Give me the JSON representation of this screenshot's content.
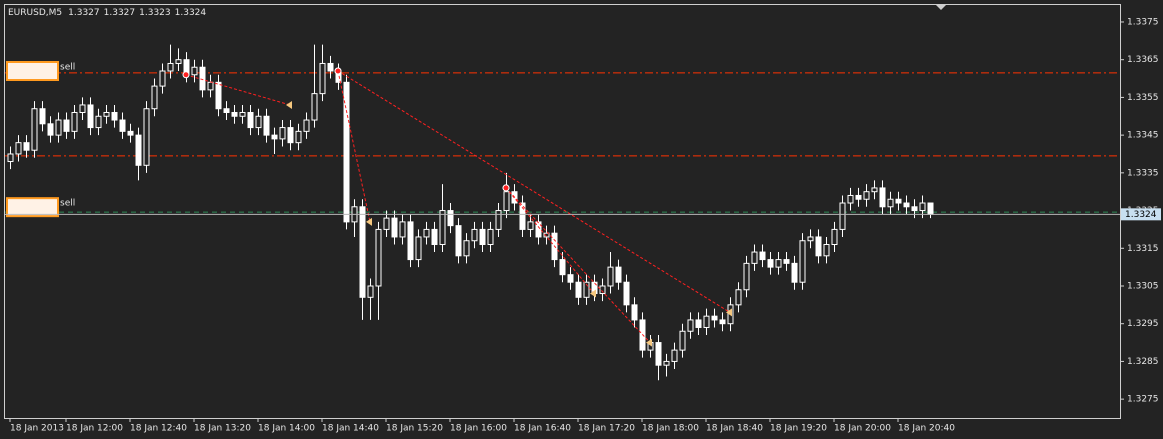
{
  "chart_data": {
    "type": "candlestick",
    "symbol": "EURUSD,M5",
    "current_price": 1.3324,
    "xlim": [
      -0.625,
      138.75
    ],
    "ylim": [
      1.327,
      1.33795
    ],
    "yticks": [
      1.3375,
      1.3365,
      1.3355,
      1.3345,
      1.3335,
      1.3325,
      1.3315,
      1.3305,
      1.3295,
      1.3285,
      1.3275
    ],
    "xticks": [
      {
        "value": 0,
        "label": "18 Jan 2013"
      },
      {
        "value": 7,
        "label": "18 Jan 12:00"
      },
      {
        "value": 15,
        "label": "18 Jan 12:40"
      },
      {
        "value": 23,
        "label": "18 Jan 13:20"
      },
      {
        "value": 31,
        "label": "18 Jan 14:00"
      },
      {
        "value": 39,
        "label": "18 Jan 14:40"
      },
      {
        "value": 47,
        "label": "18 Jan 15:20"
      },
      {
        "value": 55,
        "label": "18 Jan 16:00"
      },
      {
        "value": 63,
        "label": "18 Jan 16:40"
      },
      {
        "value": 71,
        "label": "18 Jan 17:20"
      },
      {
        "value": 79,
        "label": "18 Jan 18:00"
      },
      {
        "value": 87,
        "label": "18 Jan 18:40"
      },
      {
        "value": 95,
        "label": "18 Jan 19:20"
      },
      {
        "value": 103,
        "label": "18 Jan 20:00"
      },
      {
        "value": 111,
        "label": "18 Jan 20:40"
      }
    ],
    "bull_color": "#ffffff",
    "bear_color": "#ffffff",
    "levels": [
      {
        "price": 1.33615,
        "color": "#ff3300",
        "style": "dashdot"
      },
      {
        "price": 1.33395,
        "color": "#ff3300",
        "style": "dashdot"
      },
      {
        "price": 1.33246,
        "color": "#2e8b57",
        "style": "dashed"
      }
    ],
    "orders": [
      {
        "label": "sell",
        "price": 1.3362
      },
      {
        "label": "sell",
        "price": 1.33259
      }
    ],
    "trades": [
      {
        "open_index": 22,
        "open_price": 1.3361,
        "close_index": 35,
        "close_price": 1.3353
      },
      {
        "open_index": 41,
        "open_price": 1.3362,
        "close_index": 45,
        "close_price": 1.3322
      },
      {
        "open_index": 41,
        "open_price": 1.3362,
        "close_index": 90,
        "close_price": 1.3298
      },
      {
        "open_index": 62,
        "open_price": 1.3331,
        "close_index": 73,
        "close_price": 1.3303
      },
      {
        "open_index": 62,
        "open_price": 1.3331,
        "close_index": 80,
        "close_price": 1.329
      }
    ],
    "candles": [
      [
        1.3338,
        1.3342,
        1.3336,
        1.334
      ],
      [
        1.334,
        1.3345,
        1.3338,
        1.3343
      ],
      [
        1.3343,
        1.3345,
        1.3339,
        1.3341
      ],
      [
        1.3341,
        1.3354,
        1.3339,
        1.3352
      ],
      [
        1.3352,
        1.3354,
        1.3346,
        1.3348
      ],
      [
        1.3348,
        1.335,
        1.3343,
        1.3345
      ],
      [
        1.3345,
        1.3351,
        1.3343,
        1.3349
      ],
      [
        1.3349,
        1.3351,
        1.3344,
        1.3346
      ],
      [
        1.3346,
        1.3353,
        1.3344,
        1.3351
      ],
      [
        1.3351,
        1.3355,
        1.3349,
        1.3353
      ],
      [
        1.3353,
        1.3355,
        1.3345,
        1.3347
      ],
      [
        1.3347,
        1.3352,
        1.3345,
        1.335
      ],
      [
        1.335,
        1.3353,
        1.3348,
        1.3351
      ],
      [
        1.3351,
        1.3353,
        1.3347,
        1.3349
      ],
      [
        1.3349,
        1.3351,
        1.3344,
        1.3346
      ],
      [
        1.3346,
        1.3348,
        1.3343,
        1.3345
      ],
      [
        1.3345,
        1.3347,
        1.3333,
        1.3337
      ],
      [
        1.3337,
        1.3354,
        1.3335,
        1.3352
      ],
      [
        1.3352,
        1.336,
        1.335,
        1.3358
      ],
      [
        1.3358,
        1.3364,
        1.3356,
        1.3362
      ],
      [
        1.3362,
        1.3369,
        1.336,
        1.3364
      ],
      [
        1.3364,
        1.3368,
        1.3362,
        1.3365
      ],
      [
        1.3365,
        1.3367,
        1.3359,
        1.3361
      ],
      [
        1.3361,
        1.3365,
        1.3359,
        1.3363
      ],
      [
        1.3363,
        1.3365,
        1.3355,
        1.3357
      ],
      [
        1.3357,
        1.3361,
        1.3355,
        1.3359
      ],
      [
        1.3359,
        1.3361,
        1.335,
        1.3352
      ],
      [
        1.3352,
        1.3354,
        1.3349,
        1.3351
      ],
      [
        1.3351,
        1.3353,
        1.3348,
        1.335
      ],
      [
        1.335,
        1.3353,
        1.3348,
        1.3351
      ],
      [
        1.3351,
        1.3353,
        1.3345,
        1.3347
      ],
      [
        1.3347,
        1.3352,
        1.3345,
        1.335
      ],
      [
        1.335,
        1.3352,
        1.3343,
        1.3345
      ],
      [
        1.3345,
        1.3347,
        1.334,
        1.3344
      ],
      [
        1.3344,
        1.3349,
        1.3342,
        1.3347
      ],
      [
        1.3347,
        1.3349,
        1.3341,
        1.3343
      ],
      [
        1.3343,
        1.3348,
        1.3341,
        1.3346
      ],
      [
        1.3346,
        1.3351,
        1.3344,
        1.3349
      ],
      [
        1.3349,
        1.3369,
        1.3347,
        1.3356
      ],
      [
        1.3356,
        1.3369,
        1.3354,
        1.3364
      ],
      [
        1.3364,
        1.3366,
        1.336,
        1.3362
      ],
      [
        1.3362,
        1.3364,
        1.3357,
        1.3359
      ],
      [
        1.3359,
        1.3361,
        1.332,
        1.3322
      ],
      [
        1.3322,
        1.3328,
        1.3318,
        1.3326
      ],
      [
        1.3326,
        1.3328,
        1.3296,
        1.3302
      ],
      [
        1.3302,
        1.3307,
        1.3296,
        1.3305
      ],
      [
        1.3305,
        1.3322,
        1.3296,
        1.332
      ],
      [
        1.332,
        1.3325,
        1.3318,
        1.3323
      ],
      [
        1.3323,
        1.3325,
        1.3316,
        1.3318
      ],
      [
        1.3318,
        1.3324,
        1.3316,
        1.3322
      ],
      [
        1.3322,
        1.3324,
        1.331,
        1.3312
      ],
      [
        1.3312,
        1.332,
        1.331,
        1.3318
      ],
      [
        1.3318,
        1.3322,
        1.3316,
        1.332
      ],
      [
        1.332,
        1.3322,
        1.3314,
        1.3316
      ],
      [
        1.3316,
        1.3332,
        1.3314,
        1.3325
      ],
      [
        1.3325,
        1.3327,
        1.3319,
        1.3321
      ],
      [
        1.3321,
        1.3323,
        1.3311,
        1.3313
      ],
      [
        1.3313,
        1.3319,
        1.3311,
        1.3317
      ],
      [
        1.3317,
        1.3322,
        1.3315,
        1.332
      ],
      [
        1.332,
        1.3322,
        1.3314,
        1.3316
      ],
      [
        1.3316,
        1.3322,
        1.3314,
        1.332
      ],
      [
        1.332,
        1.3327,
        1.3318,
        1.3325
      ],
      [
        1.3325,
        1.3335,
        1.3323,
        1.333
      ],
      [
        1.333,
        1.3332,
        1.3325,
        1.3327
      ],
      [
        1.3327,
        1.3329,
        1.3318,
        1.332
      ],
      [
        1.332,
        1.3324,
        1.3318,
        1.3322
      ],
      [
        1.3322,
        1.3324,
        1.3316,
        1.3318
      ],
      [
        1.3318,
        1.3321,
        1.3316,
        1.3319
      ],
      [
        1.3319,
        1.3321,
        1.331,
        1.3312
      ],
      [
        1.3312,
        1.3314,
        1.3306,
        1.3308
      ],
      [
        1.3308,
        1.331,
        1.3304,
        1.3306
      ],
      [
        1.3306,
        1.3308,
        1.33,
        1.3302
      ],
      [
        1.3302,
        1.3308,
        1.33,
        1.3306
      ],
      [
        1.3306,
        1.3308,
        1.3301,
        1.3303
      ],
      [
        1.3303,
        1.3307,
        1.3301,
        1.3305
      ],
      [
        1.3305,
        1.3314,
        1.3303,
        1.331
      ],
      [
        1.331,
        1.3312,
        1.3304,
        1.3306
      ],
      [
        1.3306,
        1.3308,
        1.3298,
        1.33
      ],
      [
        1.33,
        1.3302,
        1.3294,
        1.3296
      ],
      [
        1.3296,
        1.3298,
        1.3286,
        1.3288
      ],
      [
        1.3288,
        1.3292,
        1.3286,
        1.329
      ],
      [
        1.329,
        1.3292,
        1.328,
        1.3284
      ],
      [
        1.3284,
        1.3287,
        1.3281,
        1.3285
      ],
      [
        1.3285,
        1.329,
        1.3283,
        1.3288
      ],
      [
        1.3288,
        1.3295,
        1.3286,
        1.3293
      ],
      [
        1.3293,
        1.3298,
        1.3291,
        1.3296
      ],
      [
        1.3296,
        1.3298,
        1.3292,
        1.3294
      ],
      [
        1.3294,
        1.3299,
        1.3292,
        1.3297
      ],
      [
        1.3297,
        1.3299,
        1.3294,
        1.3296
      ],
      [
        1.3296,
        1.3298,
        1.3293,
        1.3295
      ],
      [
        1.3295,
        1.3302,
        1.3293,
        1.33
      ],
      [
        1.33,
        1.3306,
        1.3298,
        1.3304
      ],
      [
        1.3304,
        1.3313,
        1.3302,
        1.3311
      ],
      [
        1.3311,
        1.3316,
        1.3309,
        1.3314
      ],
      [
        1.3314,
        1.3316,
        1.331,
        1.3312
      ],
      [
        1.3312,
        1.3314,
        1.3308,
        1.331
      ],
      [
        1.331,
        1.3314,
        1.3308,
        1.3312
      ],
      [
        1.3312,
        1.3314,
        1.3309,
        1.3311
      ],
      [
        1.3311,
        1.3313,
        1.3304,
        1.3306
      ],
      [
        1.3306,
        1.3319,
        1.3304,
        1.3317
      ],
      [
        1.3317,
        1.332,
        1.3315,
        1.3318
      ],
      [
        1.3318,
        1.332,
        1.3311,
        1.3313
      ],
      [
        1.3313,
        1.3318,
        1.3311,
        1.3316
      ],
      [
        1.3316,
        1.3322,
        1.3314,
        1.332
      ],
      [
        1.332,
        1.3329,
        1.3318,
        1.3327
      ],
      [
        1.3327,
        1.3331,
        1.3325,
        1.3329
      ],
      [
        1.3329,
        1.3331,
        1.3326,
        1.3328
      ],
      [
        1.3328,
        1.3332,
        1.3326,
        1.333
      ],
      [
        1.333,
        1.3333,
        1.3328,
        1.3331
      ],
      [
        1.3331,
        1.3333,
        1.3324,
        1.3326
      ],
      [
        1.3326,
        1.333,
        1.3324,
        1.3328
      ],
      [
        1.3328,
        1.333,
        1.3325,
        1.3327
      ],
      [
        1.3327,
        1.3329,
        1.3324,
        1.3326
      ],
      [
        1.3326,
        1.3328,
        1.3323,
        1.3325
      ],
      [
        1.3325,
        1.3329,
        1.3323,
        1.3327
      ],
      [
        1.3327,
        1.3327,
        1.3323,
        1.3324
      ]
    ]
  }
}
